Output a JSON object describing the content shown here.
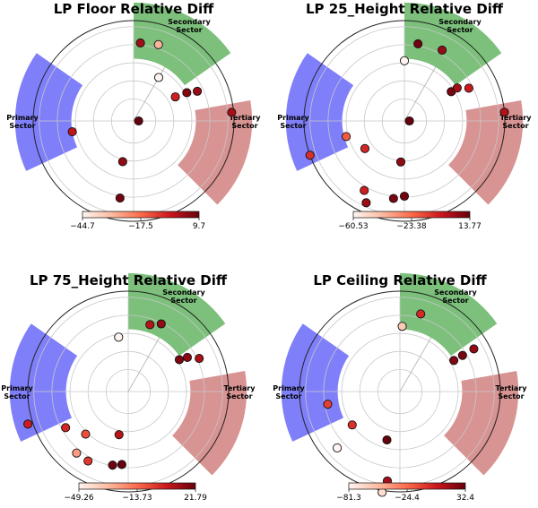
{
  "chart_data": [
    {
      "type": "scatter",
      "title": "LP Floor Relative Diff",
      "colorbar": {
        "min": -44.7,
        "max": 9.7,
        "ticks": [
          -44.7,
          -17.5,
          9.7
        ],
        "tick_labels": [
          "−44.7",
          "−17.5",
          "9.7"
        ]
      },
      "sectors": {
        "primary": "Primary\nSector",
        "secondary": "Secondary\nSector",
        "tertiary": "Tertiary\nSector"
      },
      "points": [
        {
          "angle_deg": 60,
          "radius": 0.5,
          "value": -44.7
        },
        {
          "angle_deg": 72,
          "radius": 0.8,
          "value": -30
        },
        {
          "angle_deg": 85,
          "radius": 0.78,
          "value": 2
        },
        {
          "angle_deg": 30,
          "radius": 0.48,
          "value": -5
        },
        {
          "angle_deg": 28,
          "radius": 0.6,
          "value": 6
        },
        {
          "angle_deg": 25,
          "radius": 0.7,
          "value": 3
        },
        {
          "angle_deg": 5,
          "radius": 0.98,
          "value": 1
        },
        {
          "angle_deg": 0,
          "radius": 0.05,
          "value": 9.7
        },
        {
          "angle_deg": 190,
          "radius": 0.62,
          "value": -2
        },
        {
          "angle_deg": 255,
          "radius": 0.42,
          "value": 4
        },
        {
          "angle_deg": 260,
          "radius": 0.78,
          "value": 8
        }
      ]
    },
    {
      "type": "scatter",
      "title": "LP 25_Height Relative Diff",
      "colorbar": {
        "min": -60.53,
        "max": 13.77,
        "ticks": [
          -60.53,
          -23.38,
          13.77
        ],
        "tick_labels": [
          "−60.53",
          "−23.38",
          "13.77"
        ]
      },
      "sectors": {
        "primary": "Primary\nSector",
        "secondary": "Secondary\nSector",
        "tertiary": "Tertiary\nSector"
      },
      "points": [
        {
          "angle_deg": 80,
          "radius": 0.78,
          "value": 12
        },
        {
          "angle_deg": 62,
          "radius": 0.8,
          "value": 5
        },
        {
          "angle_deg": 90,
          "radius": 0.6,
          "value": -60.53
        },
        {
          "angle_deg": 32,
          "radius": 0.55,
          "value": 10
        },
        {
          "angle_deg": 32,
          "radius": 0.62,
          "value": 2
        },
        {
          "angle_deg": 27,
          "radius": 0.72,
          "value": -5
        },
        {
          "angle_deg": 5,
          "radius": 1.0,
          "value": 0
        },
        {
          "angle_deg": 0,
          "radius": 0.05,
          "value": 13.77
        },
        {
          "angle_deg": 195,
          "radius": 0.6,
          "value": -20
        },
        {
          "angle_deg": 200,
          "radius": 1.0,
          "value": -10
        },
        {
          "angle_deg": 215,
          "radius": 0.48,
          "value": -8
        },
        {
          "angle_deg": 240,
          "radius": 0.8,
          "value": -6
        },
        {
          "angle_deg": 245,
          "radius": 0.9,
          "value": 4
        },
        {
          "angle_deg": 265,
          "radius": 0.41,
          "value": 6
        },
        {
          "angle_deg": 262,
          "radius": 0.78,
          "value": 10
        },
        {
          "angle_deg": 270,
          "radius": 0.75,
          "value": 11
        }
      ]
    },
    {
      "type": "scatter",
      "title": "LP 75_Height Relative Diff",
      "colorbar": {
        "min": -49.26,
        "max": 21.79,
        "ticks": [
          -49.26,
          -13.73,
          21.79
        ],
        "tick_labels": [
          "−49.26",
          "−13.73",
          "21.79"
        ]
      },
      "sectors": {
        "primary": "Primary\nSector",
        "secondary": "Secondary\nSector",
        "tertiary": "Tertiary\nSector"
      },
      "points": [
        {
          "angle_deg": 72,
          "radius": 0.7,
          "value": 8
        },
        {
          "angle_deg": 64,
          "radius": 0.75,
          "value": 14
        },
        {
          "angle_deg": 100,
          "radius": 0.55,
          "value": -49.26
        },
        {
          "angle_deg": 32,
          "radius": 0.6,
          "value": 18
        },
        {
          "angle_deg": 30,
          "radius": 0.68,
          "value": 15
        },
        {
          "angle_deg": 25,
          "radius": 0.78,
          "value": 10
        },
        {
          "angle_deg": 198,
          "radius": 1.05,
          "value": 3
        },
        {
          "angle_deg": 210,
          "radius": 0.72,
          "value": 1
        },
        {
          "angle_deg": 225,
          "radius": 0.6,
          "value": -8
        },
        {
          "angle_deg": 230,
          "radius": 0.8,
          "value": -25
        },
        {
          "angle_deg": 240,
          "radius": 0.8,
          "value": -3
        },
        {
          "angle_deg": 258,
          "radius": 0.44,
          "value": 7
        },
        {
          "angle_deg": 258,
          "radius": 0.75,
          "value": 20
        },
        {
          "angle_deg": 265,
          "radius": 0.73,
          "value": 21.79
        }
      ]
    },
    {
      "type": "scatter",
      "title": "LP Ceiling Relative Diff",
      "colorbar": {
        "min": -81.3,
        "max": 32.4,
        "ticks": [
          -81.3,
          -24.4,
          32.4
        ],
        "tick_labels": [
          "−81.3",
          "−24.4",
          "32.4"
        ]
      },
      "sectors": {
        "primary": "Primary\nSector",
        "secondary": "Secondary\nSector",
        "tertiary": "Tertiary\nSector"
      },
      "points": [
        {
          "angle_deg": 75,
          "radius": 0.8,
          "value": -2
        },
        {
          "angle_deg": 88,
          "radius": 0.65,
          "value": -60
        },
        {
          "angle_deg": 30,
          "radius": 0.62,
          "value": 25
        },
        {
          "angle_deg": 30,
          "radius": 0.72,
          "value": 28
        },
        {
          "angle_deg": 30,
          "radius": 0.85,
          "value": 20
        },
        {
          "angle_deg": 190,
          "radius": 0.73,
          "value": -10
        },
        {
          "angle_deg": 215,
          "radius": 0.58,
          "value": -5
        },
        {
          "angle_deg": 222,
          "radius": 0.84,
          "value": -81.3
        },
        {
          "angle_deg": 255,
          "radius": 0.5,
          "value": 32.4
        },
        {
          "angle_deg": 262,
          "radius": 0.9,
          "value": 15
        },
        {
          "angle_deg": 260,
          "radius": 1.02,
          "value": -70
        }
      ]
    }
  ]
}
